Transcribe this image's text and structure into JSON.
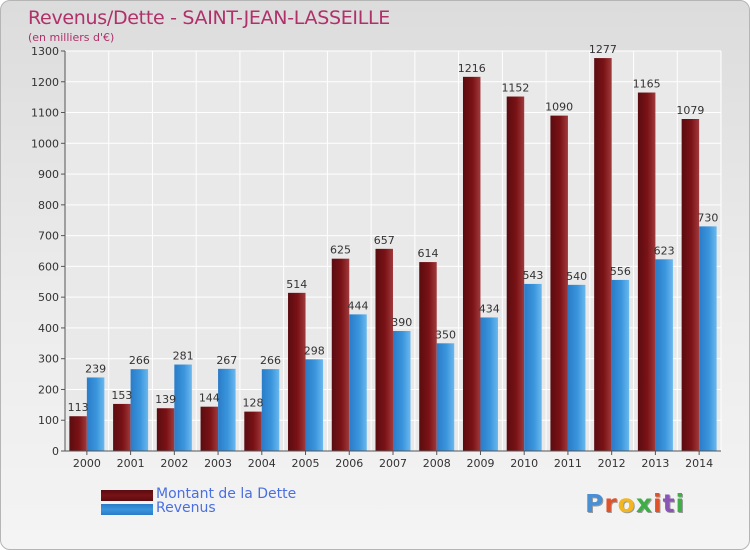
{
  "title": "Revenus/Dette - SAINT-JEAN-LASSEILLE",
  "subtitle": "(en milliers d'€)",
  "logo": {
    "letters": [
      "P",
      "r",
      "o",
      "x",
      "i",
      "t",
      "i"
    ],
    "colors": [
      "#4a8fd4",
      "#e0522a",
      "#f2b620",
      "#3fae49",
      "#e0522a",
      "#8a55b5",
      "#3fae49"
    ]
  },
  "colors": {
    "debt": "#7a1216",
    "revenue": "#3a95dc"
  },
  "chart_data": {
    "type": "bar",
    "title": "Revenus/Dette - SAINT-JEAN-LASSEILLE",
    "ylabel": "(en milliers d'€)",
    "categories": [
      "2000",
      "2001",
      "2002",
      "2003",
      "2004",
      "2005",
      "2006",
      "2007",
      "2008",
      "2009",
      "2010",
      "2011",
      "2012",
      "2013",
      "2014"
    ],
    "series": [
      {
        "name": "Montant de la Dette",
        "values": [
          113,
          153,
          139,
          144,
          128,
          514,
          625,
          657,
          614,
          1216,
          1152,
          1090,
          1277,
          1165,
          1079
        ]
      },
      {
        "name": "Revenus",
        "values": [
          239,
          266,
          281,
          267,
          266,
          298,
          444,
          390,
          350,
          434,
          543,
          540,
          556,
          623,
          730
        ]
      }
    ],
    "ylim": [
      0,
      1300
    ],
    "yticks": [
      0,
      100,
      200,
      300,
      400,
      500,
      600,
      700,
      800,
      900,
      1000,
      1100,
      1200,
      1300
    ],
    "grid": true,
    "legend": "bottom-left"
  }
}
